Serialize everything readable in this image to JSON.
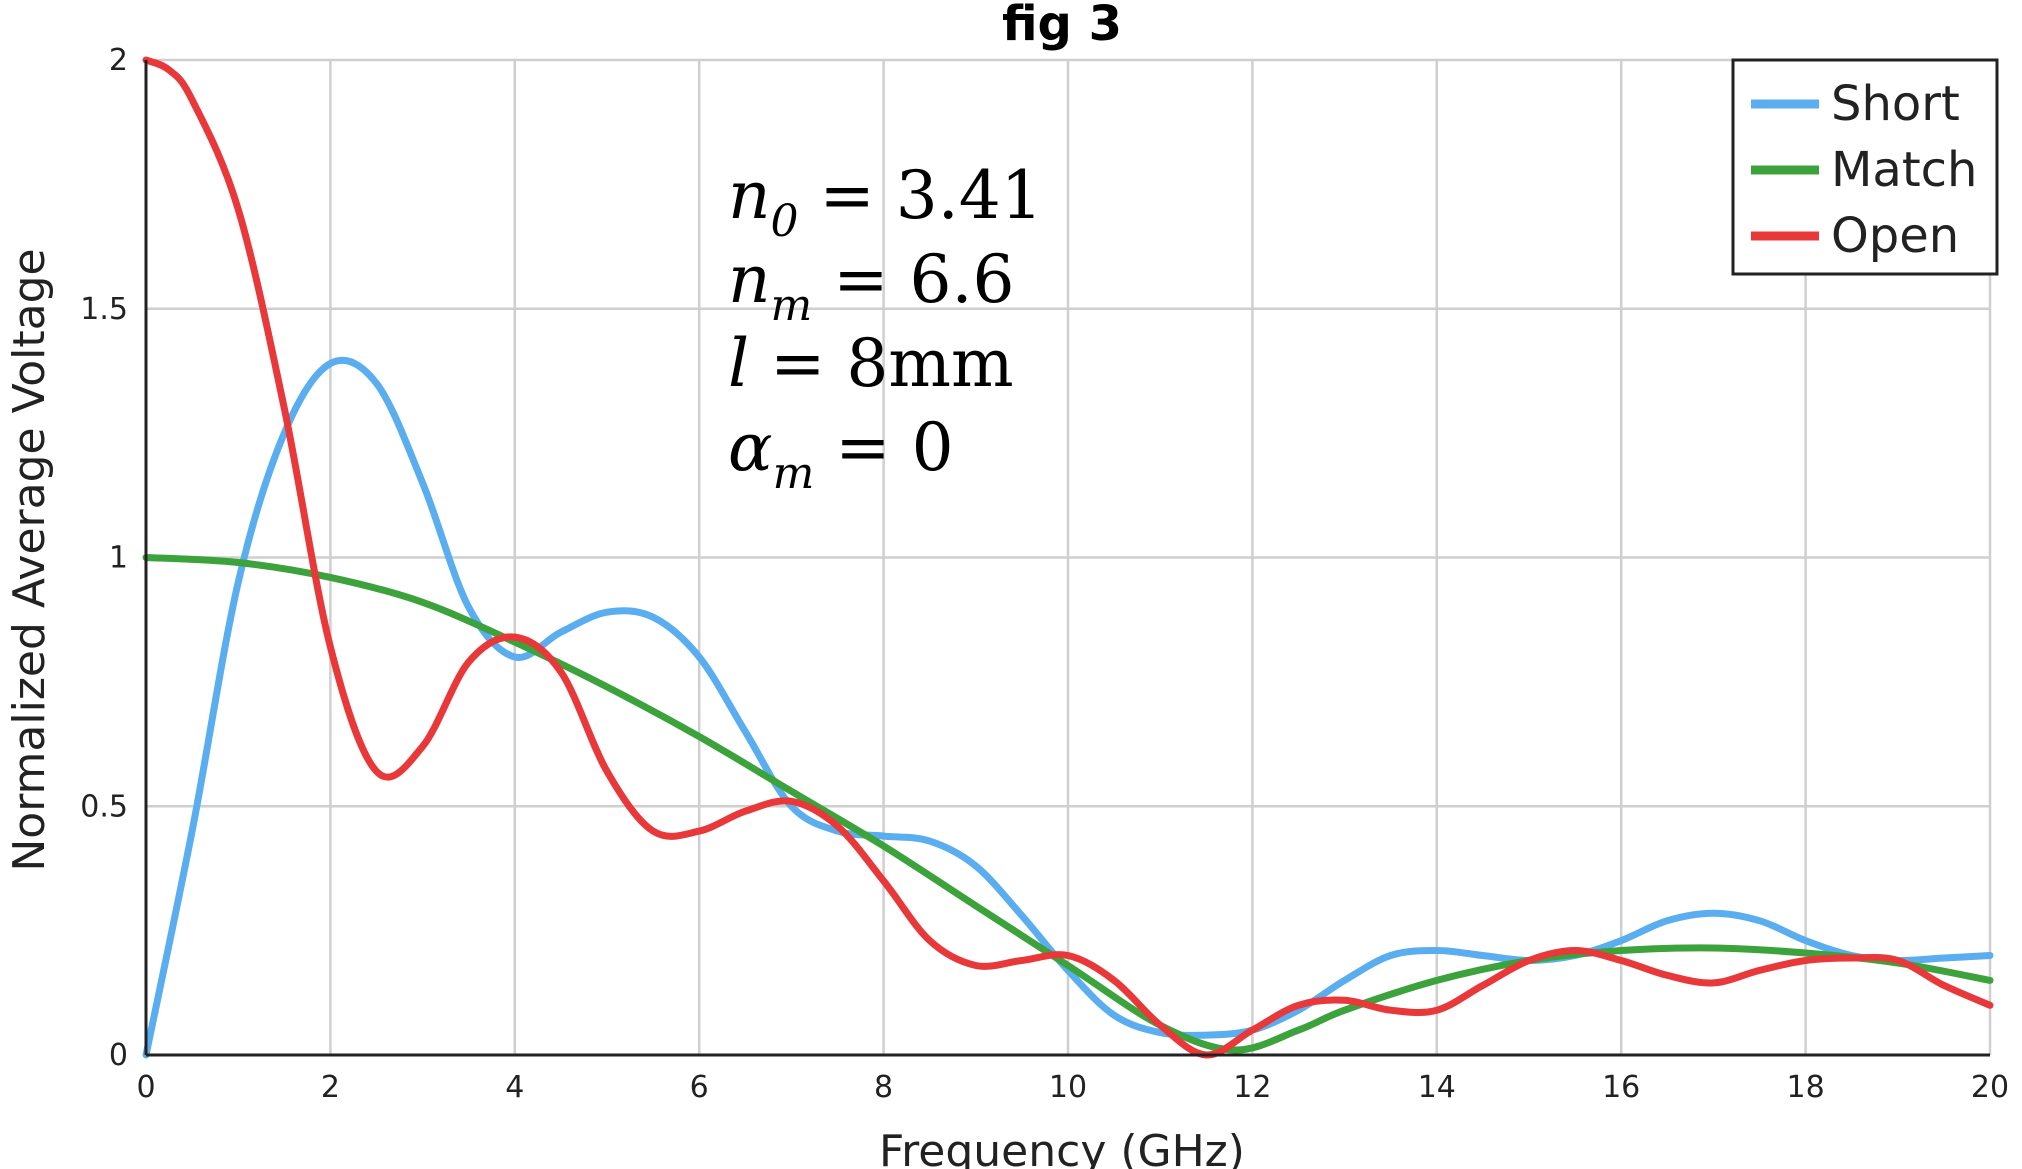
{
  "chart_data": {
    "type": "line",
    "title": "fig 3",
    "xlabel": "Frequency (GHz)",
    "ylabel": "Normalized Average Voltage",
    "xlim": [
      0,
      20
    ],
    "ylim": [
      0,
      2
    ],
    "xticks": [
      0,
      2,
      4,
      6,
      8,
      10,
      12,
      14,
      16,
      18,
      20
    ],
    "yticks": [
      0,
      0.5,
      1,
      1.5,
      2
    ],
    "ytick_labels": [
      "0",
      "0.5",
      "1",
      "1.5",
      "2"
    ],
    "grid": true,
    "legend_position": "top-right",
    "annotations": [
      {
        "var": "n",
        "sub": "0",
        "rhs": "= 3.41"
      },
      {
        "var": "n",
        "sub": "m",
        "rhs": "= 6.6"
      },
      {
        "var": "l",
        "sub": "",
        "rhs": "= 8mm"
      },
      {
        "var": "α",
        "sub": "m",
        "rhs": "= 0"
      }
    ],
    "series": [
      {
        "name": "Short",
        "color": "#5aaeef",
        "points": [
          [
            0,
            0
          ],
          [
            0.5,
            0.45
          ],
          [
            1,
            0.95
          ],
          [
            1.5,
            1.25
          ],
          [
            2,
            1.39
          ],
          [
            2.5,
            1.35
          ],
          [
            3,
            1.15
          ],
          [
            3.5,
            0.9
          ],
          [
            4,
            0.8
          ],
          [
            4.5,
            0.85
          ],
          [
            5,
            0.89
          ],
          [
            5.5,
            0.88
          ],
          [
            6,
            0.8
          ],
          [
            6.5,
            0.65
          ],
          [
            7,
            0.5
          ],
          [
            7.5,
            0.45
          ],
          [
            8,
            0.44
          ],
          [
            8.5,
            0.43
          ],
          [
            9,
            0.38
          ],
          [
            9.5,
            0.28
          ],
          [
            10,
            0.17
          ],
          [
            10.5,
            0.08
          ],
          [
            11,
            0.045
          ],
          [
            11.5,
            0.04
          ],
          [
            12,
            0.05
          ],
          [
            12.5,
            0.09
          ],
          [
            13,
            0.15
          ],
          [
            13.5,
            0.2
          ],
          [
            14,
            0.21
          ],
          [
            14.5,
            0.2
          ],
          [
            15,
            0.19
          ],
          [
            15.5,
            0.2
          ],
          [
            16,
            0.23
          ],
          [
            16.5,
            0.27
          ],
          [
            17,
            0.285
          ],
          [
            17.5,
            0.27
          ],
          [
            18,
            0.23
          ],
          [
            18.5,
            0.2
          ],
          [
            19,
            0.19
          ],
          [
            19.5,
            0.195
          ],
          [
            20,
            0.2
          ]
        ]
      },
      {
        "name": "Match",
        "color": "#3ca33c",
        "points": [
          [
            0,
            1
          ],
          [
            1,
            0.99
          ],
          [
            2,
            0.96
          ],
          [
            3,
            0.91
          ],
          [
            4,
            0.83
          ],
          [
            5,
            0.74
          ],
          [
            6,
            0.64
          ],
          [
            7,
            0.53
          ],
          [
            8,
            0.42
          ],
          [
            9,
            0.3
          ],
          [
            10,
            0.18
          ],
          [
            11,
            0.06
          ],
          [
            11.8,
            0.01
          ],
          [
            12.5,
            0.05
          ],
          [
            13,
            0.09
          ],
          [
            14,
            0.15
          ],
          [
            15,
            0.19
          ],
          [
            16,
            0.21
          ],
          [
            17,
            0.215
          ],
          [
            18,
            0.205
          ],
          [
            19,
            0.185
          ],
          [
            20,
            0.15
          ]
        ]
      },
      {
        "name": "Open",
        "color": "#e8383a",
        "points": [
          [
            0,
            2
          ],
          [
            0.25,
            1.98
          ],
          [
            0.5,
            1.92
          ],
          [
            1,
            1.7
          ],
          [
            1.5,
            1.3
          ],
          [
            2,
            0.82
          ],
          [
            2.5,
            0.57
          ],
          [
            3,
            0.62
          ],
          [
            3.5,
            0.79
          ],
          [
            4,
            0.84
          ],
          [
            4.5,
            0.77
          ],
          [
            5,
            0.57
          ],
          [
            5.5,
            0.45
          ],
          [
            6,
            0.45
          ],
          [
            6.5,
            0.49
          ],
          [
            7,
            0.51
          ],
          [
            7.5,
            0.46
          ],
          [
            8,
            0.35
          ],
          [
            8.5,
            0.23
          ],
          [
            9,
            0.18
          ],
          [
            9.5,
            0.19
          ],
          [
            10,
            0.2
          ],
          [
            10.5,
            0.15
          ],
          [
            11,
            0.06
          ],
          [
            11.5,
            0.0
          ],
          [
            12,
            0.05
          ],
          [
            12.5,
            0.1
          ],
          [
            13,
            0.11
          ],
          [
            13.5,
            0.09
          ],
          [
            14,
            0.09
          ],
          [
            14.5,
            0.14
          ],
          [
            15,
            0.19
          ],
          [
            15.5,
            0.21
          ],
          [
            16,
            0.19
          ],
          [
            16.5,
            0.16
          ],
          [
            17,
            0.145
          ],
          [
            17.5,
            0.17
          ],
          [
            18,
            0.19
          ],
          [
            18.5,
            0.195
          ],
          [
            19,
            0.19
          ],
          [
            19.5,
            0.14
          ],
          [
            20,
            0.1
          ]
        ]
      }
    ]
  }
}
